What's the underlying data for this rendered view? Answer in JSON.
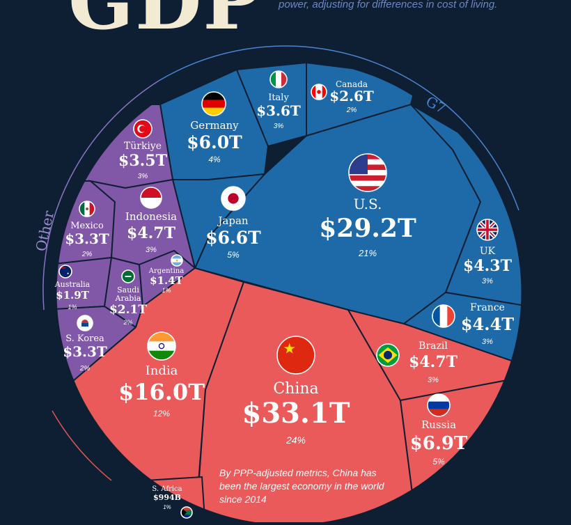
{
  "header": {
    "title": "GDP",
    "subtitle": "power, adjusting for differences in cost of living."
  },
  "groups": {
    "g7": "G7",
    "other": "Other"
  },
  "note": "By PPP-adjusted metrics, China has been the largest economy in the world since 2014",
  "colors": {
    "background": "#0f1f33",
    "g7": "#1e6aa8",
    "brics": "#eb5a5a",
    "other": "#8158a8",
    "border": "#0f1f33"
  },
  "countries": [
    {
      "id": "us",
      "name": "U.S.",
      "value": "$29.2T",
      "pct": "21%",
      "flag": "us-flag-icon"
    },
    {
      "id": "china",
      "name": "China",
      "value": "$33.1T",
      "pct": "24%",
      "flag": "china-flag-icon"
    },
    {
      "id": "india",
      "name": "India",
      "value": "$16.0T",
      "pct": "12%",
      "flag": "india-flag-icon"
    },
    {
      "id": "russia",
      "name": "Russia",
      "value": "$6.9T",
      "pct": "5%",
      "flag": "russia-flag-icon"
    },
    {
      "id": "japan",
      "name": "Japan",
      "value": "$6.6T",
      "pct": "5%",
      "flag": "japan-flag-icon"
    },
    {
      "id": "germany",
      "name": "Germany",
      "value": "$6.0T",
      "pct": "4%",
      "flag": "germany-flag-icon"
    },
    {
      "id": "brazil",
      "name": "Brazil",
      "value": "$4.7T",
      "pct": "3%",
      "flag": "brazil-flag-icon"
    },
    {
      "id": "indonesia",
      "name": "Indonesia",
      "value": "$4.7T",
      "pct": "3%",
      "flag": "indonesia-flag-icon"
    },
    {
      "id": "france",
      "name": "France",
      "value": "$4.4T",
      "pct": "3%",
      "flag": "france-flag-icon"
    },
    {
      "id": "uk",
      "name": "UK",
      "value": "$4.3T",
      "pct": "3%",
      "flag": "uk-flag-icon"
    },
    {
      "id": "italy",
      "name": "Italy",
      "value": "$3.6T",
      "pct": "3%",
      "flag": "italy-flag-icon"
    },
    {
      "id": "turkiye",
      "name": "Türkiye",
      "value": "$3.5T",
      "pct": "3%",
      "flag": "turkiye-flag-icon"
    },
    {
      "id": "mexico",
      "name": "Mexico",
      "value": "$3.3T",
      "pct": "2%",
      "flag": "mexico-flag-icon"
    },
    {
      "id": "skorea",
      "name": "S. Korea",
      "value": "$3.3T",
      "pct": "2%",
      "flag": "south-korea-flag-icon"
    },
    {
      "id": "canada",
      "name": "Canada",
      "value": "$2.6T",
      "pct": "2%",
      "flag": "canada-flag-icon"
    },
    {
      "id": "saudi",
      "name": "Saudi Arabia",
      "name_lines": [
        "Saudi",
        "Arabia"
      ],
      "value": "$2.1T",
      "pct": "2%",
      "flag": "saudi-arabia-flag-icon"
    },
    {
      "id": "australia",
      "name": "Australia",
      "value": "$1.9T",
      "pct": "1%",
      "flag": "australia-flag-icon"
    },
    {
      "id": "argentina",
      "name": "Argentina",
      "value": "$1.4T",
      "pct": "1%",
      "flag": "argentina-flag-icon"
    },
    {
      "id": "safrica",
      "name": "S. Africa",
      "value": "$994B",
      "pct": "1%",
      "flag": "south-africa-flag-icon"
    }
  ]
}
